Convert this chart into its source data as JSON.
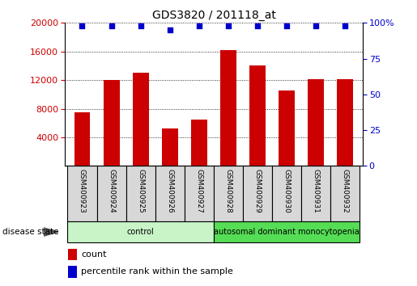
{
  "title": "GDS3820 / 201118_at",
  "samples": [
    "GSM400923",
    "GSM400924",
    "GSM400925",
    "GSM400926",
    "GSM400927",
    "GSM400928",
    "GSM400929",
    "GSM400930",
    "GSM400931",
    "GSM400932"
  ],
  "counts": [
    7500,
    12000,
    13000,
    5200,
    6500,
    16200,
    14000,
    10500,
    12100,
    12100
  ],
  "percentiles": [
    98,
    98,
    98,
    95,
    98,
    98,
    98,
    98,
    98,
    98
  ],
  "bar_color": "#cc0000",
  "dot_color": "#0000cc",
  "ylim_left": [
    0,
    20000
  ],
  "ylim_right": [
    0,
    100
  ],
  "yticks_left": [
    4000,
    8000,
    12000,
    16000,
    20000
  ],
  "yticks_right": [
    0,
    25,
    50,
    75,
    100
  ],
  "groups": [
    {
      "label": "control",
      "indices": [
        0,
        1,
        2,
        3,
        4
      ],
      "color": "#c8f4c8"
    },
    {
      "label": "autosomal dominant monocytopenia",
      "indices": [
        5,
        6,
        7,
        8,
        9
      ],
      "color": "#55dd55"
    }
  ],
  "disease_state_label": "disease state",
  "legend_count_label": "count",
  "legend_percentile_label": "percentile rank within the sample",
  "grid_color": "#000000",
  "xlabel_area_color": "#d8d8d8",
  "xlabel_border_color": "#000000"
}
